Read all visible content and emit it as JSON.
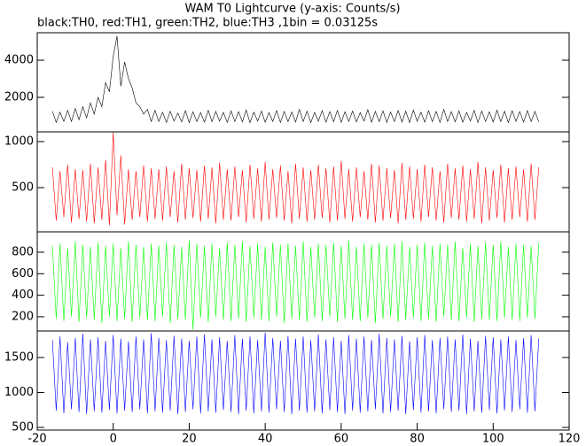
{
  "chart_data": [
    {
      "type": "line",
      "title": "WAM T0 Lightcurve (y-axis: Counts/s)",
      "subtitle": "black:TH0, red:TH1, green:TH2, blue:TH3 ,1bin = 0.03125s",
      "x": [
        -16,
        -15,
        -14,
        -13,
        -12,
        -11,
        -10,
        -9,
        -8,
        -7,
        -6,
        -5,
        -4,
        -3,
        -2,
        -1,
        0,
        1,
        2,
        3,
        4,
        5,
        6,
        7,
        8,
        9,
        10,
        11,
        12,
        13,
        14,
        15,
        16,
        17,
        18,
        19,
        20,
        21,
        22,
        23,
        24,
        25,
        26,
        27,
        28,
        29,
        30,
        31,
        32,
        33,
        34,
        35,
        36,
        37,
        38,
        39,
        40,
        41,
        42,
        43,
        44,
        45,
        46,
        47,
        48,
        49,
        50,
        51,
        52,
        53,
        54,
        55,
        56,
        57,
        58,
        59,
        60,
        61,
        62,
        63,
        64,
        65,
        66,
        67,
        68,
        69,
        70,
        71,
        72,
        73,
        74,
        75,
        76,
        77,
        78,
        79,
        80,
        81,
        82,
        83,
        84,
        85,
        86,
        87,
        88,
        89,
        90,
        91,
        92,
        93,
        94,
        95,
        96,
        97,
        98,
        99,
        100,
        101,
        102,
        103,
        104,
        105,
        106,
        107,
        108,
        109,
        110,
        111,
        112
      ],
      "series": [
        {
          "color": "#000000",
          "values": [
            1250,
            650,
            1200,
            700,
            1300,
            700,
            1400,
            800,
            1500,
            900,
            1700,
            1100,
            2000,
            1500,
            2800,
            2300,
            4200,
            5300,
            2600,
            3900,
            3000,
            2500,
            1700,
            1500,
            1100,
            1350,
            700,
            1300,
            700,
            1200,
            650,
            1250,
            720,
            1150,
            680,
            1280,
            640,
            1220,
            700,
            1180,
            660,
            1300,
            690,
            1240,
            710,
            1190,
            650,
            1270,
            700,
            1230,
            680,
            1320,
            640,
            1200,
            720,
            1260,
            660,
            1180,
            700,
            1290,
            650,
            1240,
            690,
            1210,
            670,
            1350,
            700,
            1250,
            640,
            1190,
            710,
            1280,
            660,
            1230,
            690,
            1300,
            650,
            1220,
            700,
            1260,
            680,
            1180,
            720,
            1330,
            660,
            1240,
            690,
            1270,
            650,
            1210,
            700,
            1290,
            670,
            1250,
            640,
            1320,
            710,
            1200,
            660,
            1280,
            690,
            1240,
            650,
            1350,
            700,
            1230,
            680,
            1270,
            660,
            1190,
            720,
            1300,
            650,
            1260,
            700,
            1220,
            670,
            1310,
            690,
            1250,
            640,
            1280,
            710,
            1230,
            660,
            1290,
            700,
            1240,
            680
          ]
        }
      ],
      "xlim": [
        -20,
        120
      ],
      "ylim": [
        140,
        5480
      ],
      "yticks": [
        2000,
        4000
      ]
    },
    {
      "type": "line",
      "x": [
        -16,
        -15,
        -14,
        -13,
        -12,
        -11,
        -10,
        -9,
        -8,
        -7,
        -6,
        -5,
        -4,
        -3,
        -2,
        -1,
        0,
        1,
        2,
        3,
        4,
        5,
        6,
        7,
        8,
        9,
        10,
        11,
        12,
        13,
        14,
        15,
        16,
        17,
        18,
        19,
        20,
        21,
        22,
        23,
        24,
        25,
        26,
        27,
        28,
        29,
        30,
        31,
        32,
        33,
        34,
        35,
        36,
        37,
        38,
        39,
        40,
        41,
        42,
        43,
        44,
        45,
        46,
        47,
        48,
        49,
        50,
        51,
        52,
        53,
        54,
        55,
        56,
        57,
        58,
        59,
        60,
        61,
        62,
        63,
        64,
        65,
        66,
        67,
        68,
        69,
        70,
        71,
        72,
        73,
        74,
        75,
        76,
        77,
        78,
        79,
        80,
        81,
        82,
        83,
        84,
        85,
        86,
        87,
        88,
        89,
        90,
        91,
        92,
        93,
        94,
        95,
        96,
        97,
        98,
        99,
        100,
        101,
        102,
        103,
        104,
        105,
        106,
        107,
        108,
        109,
        110,
        111,
        112
      ],
      "series": [
        {
          "color": "#ff0000",
          "values": [
            720,
            140,
            680,
            180,
            750,
            120,
            700,
            160,
            690,
            130,
            760,
            110,
            720,
            150,
            800,
            90,
            1100,
            200,
            850,
            100,
            700,
            150,
            680,
            180,
            740,
            130,
            710,
            160,
            700,
            140,
            730,
            180,
            680,
            120,
            760,
            150,
            710,
            170,
            690,
            130,
            740,
            160,
            720,
            110,
            770,
            150,
            700,
            140,
            730,
            180,
            690,
            120,
            750,
            160,
            710,
            130,
            780,
            150,
            700,
            170,
            740,
            140,
            680,
            110,
            760,
            160,
            720,
            130,
            690,
            150,
            750,
            170,
            710,
            120,
            730,
            140,
            790,
            160,
            700,
            130,
            720,
            180,
            680,
            150,
            760,
            120,
            740,
            140,
            710,
            170,
            690,
            110,
            770,
            150,
            730,
            160,
            700,
            130,
            750,
            180,
            720,
            140,
            680,
            120,
            760,
            170,
            710,
            150,
            740,
            130,
            700,
            160,
            780,
            110,
            720,
            140,
            690,
            170,
            750,
            120,
            710,
            150,
            730,
            180,
            700,
            130,
            760,
            150,
            720
          ]
        }
      ],
      "xlim": [
        -20,
        120
      ],
      "ylim": [
        19,
        1106
      ],
      "yticks": [
        500,
        1000
      ]
    },
    {
      "type": "line",
      "x": [
        -16,
        -15,
        -14,
        -13,
        -12,
        -11,
        -10,
        -9,
        -8,
        -7,
        -6,
        -5,
        -4,
        -3,
        -2,
        -1,
        0,
        1,
        2,
        3,
        4,
        5,
        6,
        7,
        8,
        9,
        10,
        11,
        12,
        13,
        14,
        15,
        16,
        17,
        18,
        19,
        20,
        21,
        22,
        23,
        24,
        25,
        26,
        27,
        28,
        29,
        30,
        31,
        32,
        33,
        34,
        35,
        36,
        37,
        38,
        39,
        40,
        41,
        42,
        43,
        44,
        45,
        46,
        47,
        48,
        49,
        50,
        51,
        52,
        53,
        54,
        55,
        56,
        57,
        58,
        59,
        60,
        61,
        62,
        63,
        64,
        65,
        66,
        67,
        68,
        69,
        70,
        71,
        72,
        73,
        74,
        75,
        76,
        77,
        78,
        79,
        80,
        81,
        82,
        83,
        84,
        85,
        86,
        87,
        88,
        89,
        90,
        91,
        92,
        93,
        94,
        95,
        96,
        97,
        98,
        99,
        100,
        101,
        102,
        103,
        104,
        105,
        106,
        107,
        108,
        109,
        110,
        111,
        112
      ],
      "series": [
        {
          "color": "#00ff00",
          "values": [
            860,
            180,
            880,
            160,
            840,
            200,
            900,
            150,
            870,
            190,
            850,
            170,
            890,
            140,
            860,
            200,
            880,
            160,
            840,
            180,
            900,
            150,
            870,
            190,
            850,
            170,
            880,
            160,
            860,
            200,
            890,
            140,
            870,
            180,
            850,
            170,
            910,
            80,
            880,
            190,
            860,
            150,
            880,
            200,
            840,
            170,
            890,
            160,
            870,
            180,
            900,
            150,
            860,
            190,
            880,
            170,
            850,
            160,
            890,
            200,
            870,
            140,
            880,
            180,
            860,
            170,
            900,
            150,
            850,
            190,
            880,
            160,
            870,
            200,
            890,
            150,
            860,
            180,
            910,
            170,
            850,
            160,
            880,
            190,
            870,
            140,
            890,
            180,
            860,
            200,
            880,
            150,
            900,
            170,
            850,
            190,
            870,
            160,
            890,
            180,
            860,
            150,
            880,
            200,
            870,
            170,
            900,
            160,
            840,
            190,
            880,
            150,
            860,
            180,
            890,
            170,
            870,
            160,
            900,
            190,
            850,
            170,
            880,
            160,
            870,
            190,
            860,
            180,
            890
          ]
        }
      ],
      "xlim": [
        -20,
        120
      ],
      "ylim": [
        68,
        989
      ],
      "yticks": [
        200,
        400,
        600,
        800
      ]
    },
    {
      "type": "line",
      "x": [
        -16,
        -15,
        -14,
        -13,
        -12,
        -11,
        -10,
        -9,
        -8,
        -7,
        -6,
        -5,
        -4,
        -3,
        -2,
        -1,
        0,
        1,
        2,
        3,
        4,
        5,
        6,
        7,
        8,
        9,
        10,
        11,
        12,
        13,
        14,
        15,
        16,
        17,
        18,
        19,
        20,
        21,
        22,
        23,
        24,
        25,
        26,
        27,
        28,
        29,
        30,
        31,
        32,
        33,
        34,
        35,
        36,
        37,
        38,
        39,
        40,
        41,
        42,
        43,
        44,
        45,
        46,
        47,
        48,
        49,
        50,
        51,
        52,
        53,
        54,
        55,
        56,
        57,
        58,
        59,
        60,
        61,
        62,
        63,
        64,
        65,
        66,
        67,
        68,
        69,
        70,
        71,
        72,
        73,
        74,
        75,
        76,
        77,
        78,
        79,
        80,
        81,
        82,
        83,
        84,
        85,
        86,
        87,
        88,
        89,
        90,
        91,
        92,
        93,
        94,
        95,
        96,
        97,
        98,
        99,
        100,
        101,
        102,
        103,
        104,
        105,
        106,
        107,
        108,
        109,
        110,
        111,
        112
      ],
      "series": [
        {
          "color": "#0000ff",
          "values": [
            1750,
            740,
            1800,
            700,
            1720,
            760,
            1780,
            720,
            1840,
            690,
            1760,
            730,
            1790,
            710,
            1740,
            750,
            1820,
            700,
            1770,
            740,
            1730,
            720,
            1800,
            760,
            1760,
            700,
            1850,
            730,
            1780,
            710,
            1750,
            740,
            1810,
            690,
            1770,
            720,
            1740,
            760,
            1800,
            700,
            1830,
            730,
            1760,
            710,
            1790,
            750,
            1740,
            720,
            1820,
            690,
            1770,
            740,
            1800,
            700,
            1750,
            730,
            1860,
            710,
            1780,
            760,
            1740,
            720,
            1810,
            690,
            1770,
            740,
            1800,
            710,
            1750,
            730,
            1830,
            700,
            1760,
            750,
            1790,
            720,
            1740,
            690,
            1820,
            740,
            1770,
            710,
            1800,
            730,
            1750,
            760,
            1840,
            700,
            1780,
            720,
            1760,
            740,
            1810,
            690,
            1730,
            750,
            1790,
            710,
            1820,
            730,
            1750,
            700,
            1780,
            760,
            1800,
            720,
            1760,
            740,
            1830,
            690,
            1770,
            730,
            1740,
            710,
            1810,
            750,
            1790,
            700,
            1760,
            740,
            1800,
            720,
            1750,
            760,
            1780,
            710,
            1820,
            730,
            1770
          ]
        }
      ],
      "xlim": [
        -20,
        120
      ],
      "ylim": [
        462,
        1880
      ],
      "yticks": [
        500,
        1000,
        1500
      ],
      "xticks": [
        -20,
        0,
        20,
        40,
        60,
        80,
        100,
        120
      ]
    }
  ]
}
